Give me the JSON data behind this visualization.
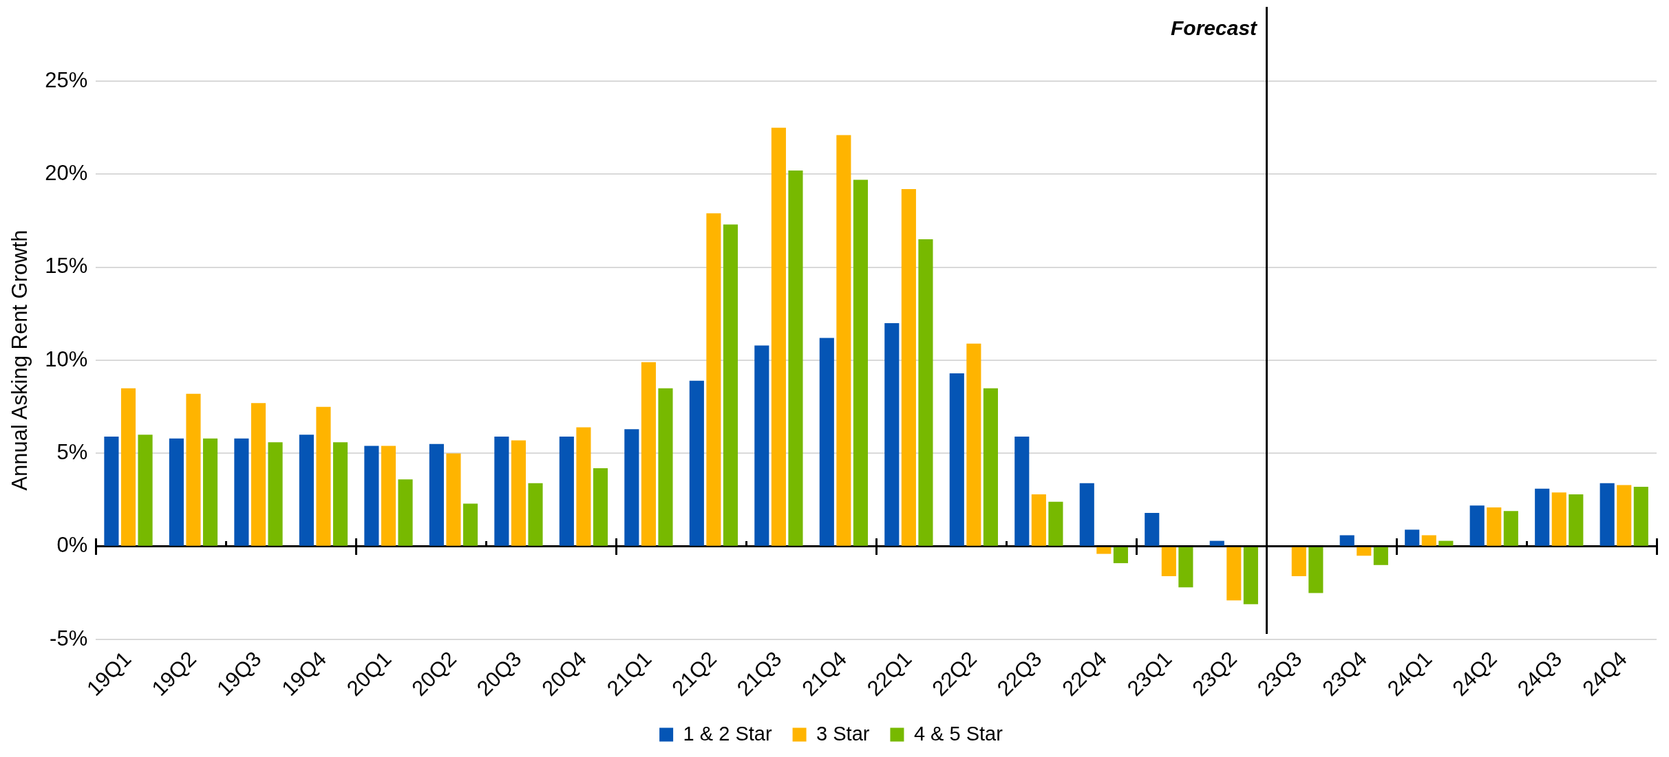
{
  "chart_data": {
    "type": "bar",
    "ylabel": "Annual Asking Rent Growth",
    "categories": [
      "19Q1",
      "19Q2",
      "19Q3",
      "19Q4",
      "20Q1",
      "20Q2",
      "20Q3",
      "20Q4",
      "21Q1",
      "21Q2",
      "21Q3",
      "21Q4",
      "22Q1",
      "22Q2",
      "22Q3",
      "22Q4",
      "23Q1",
      "23Q2",
      "23Q3",
      "23Q4",
      "24Q1",
      "24Q2",
      "24Q3",
      "24Q4"
    ],
    "series": [
      {
        "name": "1 & 2 Star",
        "color": "#0555b5",
        "values": [
          5.9,
          5.8,
          5.8,
          6.0,
          5.4,
          5.5,
          5.9,
          5.9,
          6.3,
          8.9,
          10.8,
          11.2,
          12.0,
          9.3,
          5.9,
          3.4,
          1.8,
          0.3,
          0.0,
          0.6,
          0.9,
          2.2,
          3.1,
          3.4
        ]
      },
      {
        "name": "3 Star",
        "color": "#ffb400",
        "values": [
          8.5,
          8.2,
          7.7,
          7.5,
          5.4,
          5.0,
          5.7,
          6.4,
          9.9,
          17.9,
          22.5,
          22.1,
          19.2,
          10.9,
          2.8,
          -0.4,
          -1.6,
          -2.9,
          -1.6,
          -0.5,
          0.6,
          2.1,
          2.9,
          3.3
        ]
      },
      {
        "name": "4 & 5 Star",
        "color": "#77b900",
        "values": [
          6.0,
          5.8,
          5.6,
          5.6,
          3.6,
          2.3,
          3.4,
          4.2,
          8.5,
          17.3,
          20.2,
          19.7,
          16.5,
          8.5,
          2.4,
          -0.9,
          -2.2,
          -3.1,
          -2.5,
          -1.0,
          0.3,
          1.9,
          2.8,
          3.2
        ]
      }
    ],
    "ylim": [
      -5,
      25
    ],
    "yticks": [
      {
        "value": -5,
        "label": "-5%"
      },
      {
        "value": 0,
        "label": "0%"
      },
      {
        "value": 5,
        "label": "5%"
      },
      {
        "value": 10,
        "label": "10%"
      },
      {
        "value": 15,
        "label": "15%"
      },
      {
        "value": 20,
        "label": "20%"
      },
      {
        "value": 25,
        "label": "25%"
      }
    ],
    "grid": "y",
    "legend": "bottom",
    "annotations": [
      "Forecast"
    ]
  }
}
